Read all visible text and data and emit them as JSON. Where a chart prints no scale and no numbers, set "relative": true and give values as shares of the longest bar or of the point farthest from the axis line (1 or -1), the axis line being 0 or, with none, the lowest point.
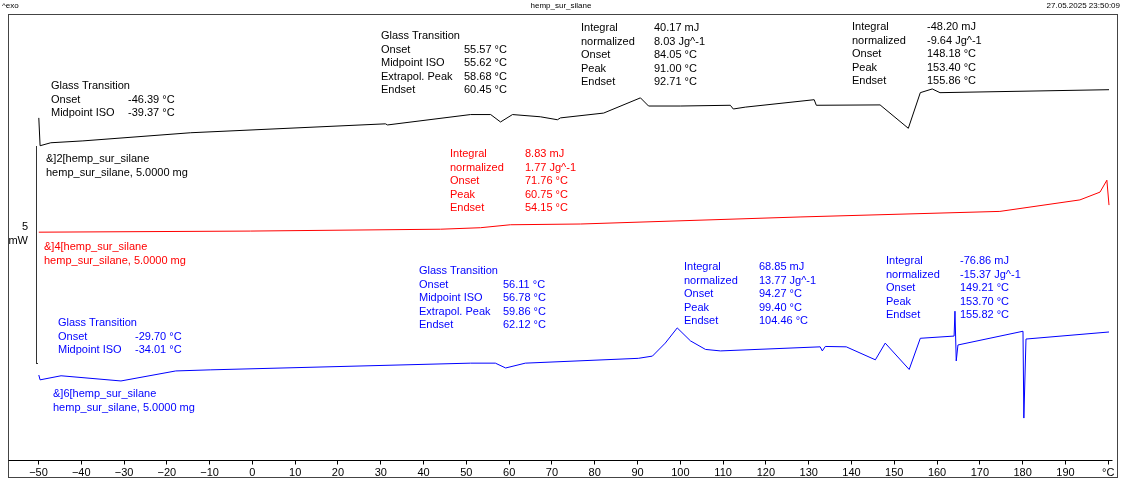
{
  "chart_data": {
    "type": "line",
    "title": "hemp_sur_silane",
    "relative": true,
    "xlim": [
      -57,
      201
    ],
    "xticks": [
      -50,
      -40,
      -30,
      -20,
      -10,
      0,
      10,
      20,
      30,
      40,
      50,
      60,
      70,
      80,
      90,
      100,
      110,
      120,
      130,
      140,
      150,
      160,
      170,
      180,
      190,
      {
        "value": 200,
        "label": "°C"
      }
    ],
    "annotations": [
      "^exo",
      "27.05.2025 23:50:09",
      "5\nmW",
      "Glass Transition\nOnset\t-46.39 °C\nMidpoint ISO\t-39.37 °C",
      "Glass Transition\nOnset\t55.57 °C\nMidpoint ISO\t55.62 °C\nExtrapol. Peak\t58.68 °C\nEndset\t60.45 °C",
      "Integral\t40.17 mJ\nnormalized\t8.03 Jg^-1\nOnset\t84.05 °C\nPeak\t91.00 °C\nEndset\t92.71 °C",
      "Integral\t-48.20 mJ\nnormalized\t-9.64 Jg^-1\nOnset\t148.18 °C\nPeak\t153.40 °C\nEndset\t155.86 °C",
      "Integral\t8.83 mJ\nnormalized\t1.77 Jg^-1\nOnset\t71.76 °C\nPeak\t60.75 °C\nEndset\t54.15 °C",
      "Glass Transition\nOnset\t-29.70 °C\nMidpoint ISO\t-34.01 °C",
      "Glass Transition\nOnset\t56.11 °C\nMidpoint ISO\t56.78 °C\nExtrapol. Peak\t59.86 °C\nEndset\t62.12 °C",
      "Integral\t68.85 mJ\nnormalized\t13.77 Jg^-1\nOnset\t94.27 °C\nPeak\t99.40 °C\nEndset\t104.46 °C",
      "Integral\t-76.86 mJ\nnormalized\t-15.37 Jg^-1\nOnset\t149.21 °C\nPeak\t153.70 °C\nEndset\t155.82 °C"
    ],
    "series": [
      {
        "name": "&]2[hemp_sur_silane\nhemp_sur_silane, 5.0000 mg",
        "color": "#000000",
        "x": [
          -49.8,
          -49.5,
          -47.0,
          -39.5,
          -14.3,
          31.2,
          31.7,
          51.1,
          55.8,
          58.1,
          60.9,
          67.4,
          71.4,
          72.1,
          82.2,
          90.8,
          92.7,
          100.1,
          111.8,
          112.5,
          115.3,
          131.4,
          131.9,
          146.8,
          153.4,
          156.2,
          159.0,
          160.8,
          200.3
        ],
        "values": [
          0.922,
          0.847,
          0.855,
          0.86,
          0.882,
          0.906,
          0.903,
          0.931,
          0.931,
          0.911,
          0.931,
          0.925,
          0.917,
          0.922,
          0.935,
          0.976,
          0.954,
          0.954,
          0.956,
          0.946,
          0.951,
          0.971,
          0.956,
          0.957,
          0.894,
          0.99,
          1,
          0.99,
          0.998
        ]
      },
      {
        "name": "&]4[hemp_sur_silane\nhemp_sur_silane, 5.0000 mg",
        "color": "#ff0000",
        "x": [
          -49.8,
          -0.3,
          44.1,
          53.4,
          60.4,
          76.8,
          128.1,
          174.8,
          193.5,
          198.2,
          199.8,
          200.3
        ],
        "values": [
          0.614,
          0.617,
          0.622,
          0.626,
          0.634,
          0.636,
          0.655,
          0.67,
          0.701,
          0.722,
          0.754,
          0.687
        ]
      },
      {
        "name": "&]6[hemp_sur_silane\nhemp_sur_silane, 5.0000 mg",
        "color": "#0000ff",
        "x": [
          -49.8,
          -49.5,
          -44.6,
          -30.6,
          -17.8,
          -9.6,
          51.1,
          56.9,
          59.3,
          63.9,
          90.3,
          93.6,
          96.6,
          99.4,
          102.5,
          106.0,
          109.5,
          132.8,
          133.3,
          134.0,
          138.9,
          145.7,
          148.0,
          153.6,
          156.2,
          164.1,
          164.3,
          164.6,
          165.0,
          180.2,
          180.4,
          180.9,
          200.3
        ],
        "values": [
          0.229,
          0.216,
          0.227,
          0.213,
          0.24,
          0.243,
          0.261,
          0.261,
          0.248,
          0.261,
          0.274,
          0.28,
          0.315,
          0.356,
          0.321,
          0.298,
          0.294,
          0.305,
          0.294,
          0.306,
          0.305,
          0.27,
          0.315,
          0.244,
          0.328,
          0.334,
          0.401,
          0.267,
          0.31,
          0.347,
          0.113,
          0.326,
          0.345
        ]
      }
    ]
  }
}
